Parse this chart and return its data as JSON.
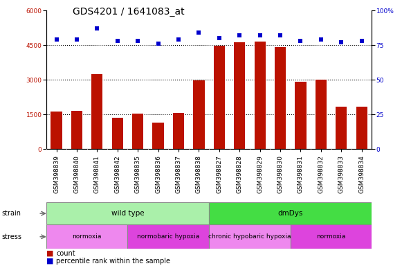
{
  "title": "GDS4201 / 1641083_at",
  "samples": [
    "GSM398839",
    "GSM398840",
    "GSM398841",
    "GSM398842",
    "GSM398835",
    "GSM398836",
    "GSM398837",
    "GSM398838",
    "GSM398827",
    "GSM398828",
    "GSM398829",
    "GSM398830",
    "GSM398831",
    "GSM398832",
    "GSM398833",
    "GSM398834"
  ],
  "counts": [
    1620,
    1650,
    3250,
    1350,
    1520,
    1150,
    1560,
    2970,
    4490,
    4620,
    4670,
    4420,
    2930,
    3020,
    1820,
    1830
  ],
  "percentiles": [
    79,
    79,
    87,
    78,
    78,
    76,
    79,
    84,
    80,
    82,
    82,
    82,
    78,
    79,
    77,
    78
  ],
  "bar_color": "#bb1100",
  "dot_color": "#0000cc",
  "ylim_left": [
    0,
    6000
  ],
  "ylim_right": [
    0,
    100
  ],
  "yticks_left": [
    0,
    1500,
    3000,
    4500,
    6000
  ],
  "yticks_right": [
    0,
    25,
    50,
    75,
    100
  ],
  "grid_values": [
    1500,
    3000,
    4500
  ],
  "strain_groups": [
    {
      "label": "wild type",
      "start": 0,
      "end": 8,
      "color": "#aaf0aa"
    },
    {
      "label": "dmDys",
      "start": 8,
      "end": 16,
      "color": "#44dd44"
    }
  ],
  "stress_groups": [
    {
      "label": "normoxia",
      "start": 0,
      "end": 4,
      "color": "#ee88ee"
    },
    {
      "label": "normobaric hypoxia",
      "start": 4,
      "end": 8,
      "color": "#dd44dd"
    },
    {
      "label": "chronic hypobaric hypoxia",
      "start": 8,
      "end": 12,
      "color": "#ee88ee"
    },
    {
      "label": "normoxia",
      "start": 12,
      "end": 16,
      "color": "#dd44dd"
    }
  ],
  "title_fontsize": 10,
  "tick_fontsize": 6.5,
  "bar_width": 0.55,
  "fig_bg": "#ffffff",
  "plot_bg": "#ffffff"
}
